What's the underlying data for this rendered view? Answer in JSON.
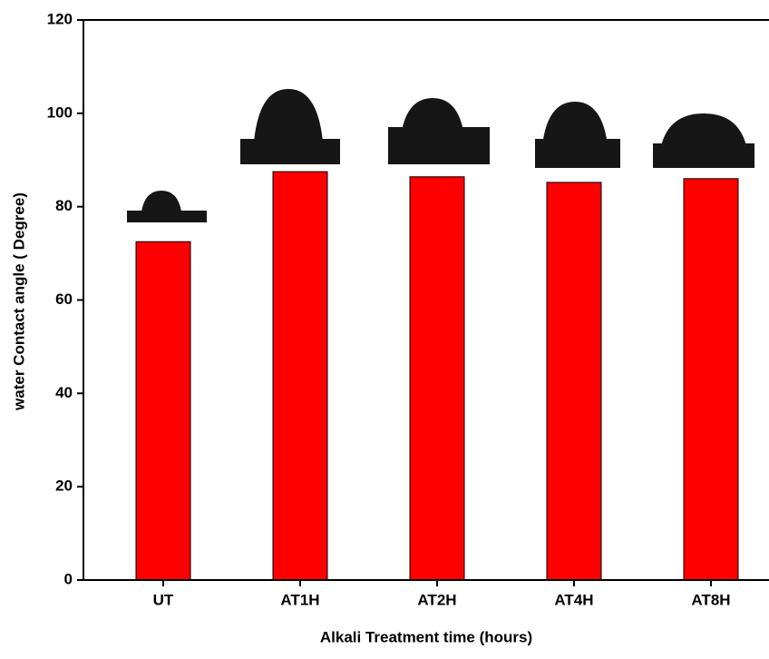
{
  "chart_data": {
    "type": "bar",
    "x_label": "Alkali Treatment time (hours)",
    "y_label": "water Contact angle ( Degree)",
    "categories": [
      "UT",
      "AT1H",
      "AT2H",
      "AT4H",
      "AT8H"
    ],
    "values": [
      72.5,
      87.5,
      86.4,
      85.2,
      86.0
    ],
    "color": "#ff0000",
    "ylim": [
      0,
      120
    ],
    "yticks": [
      0,
      20,
      40,
      60,
      80,
      100,
      120
    ],
    "grid": false
  }
}
